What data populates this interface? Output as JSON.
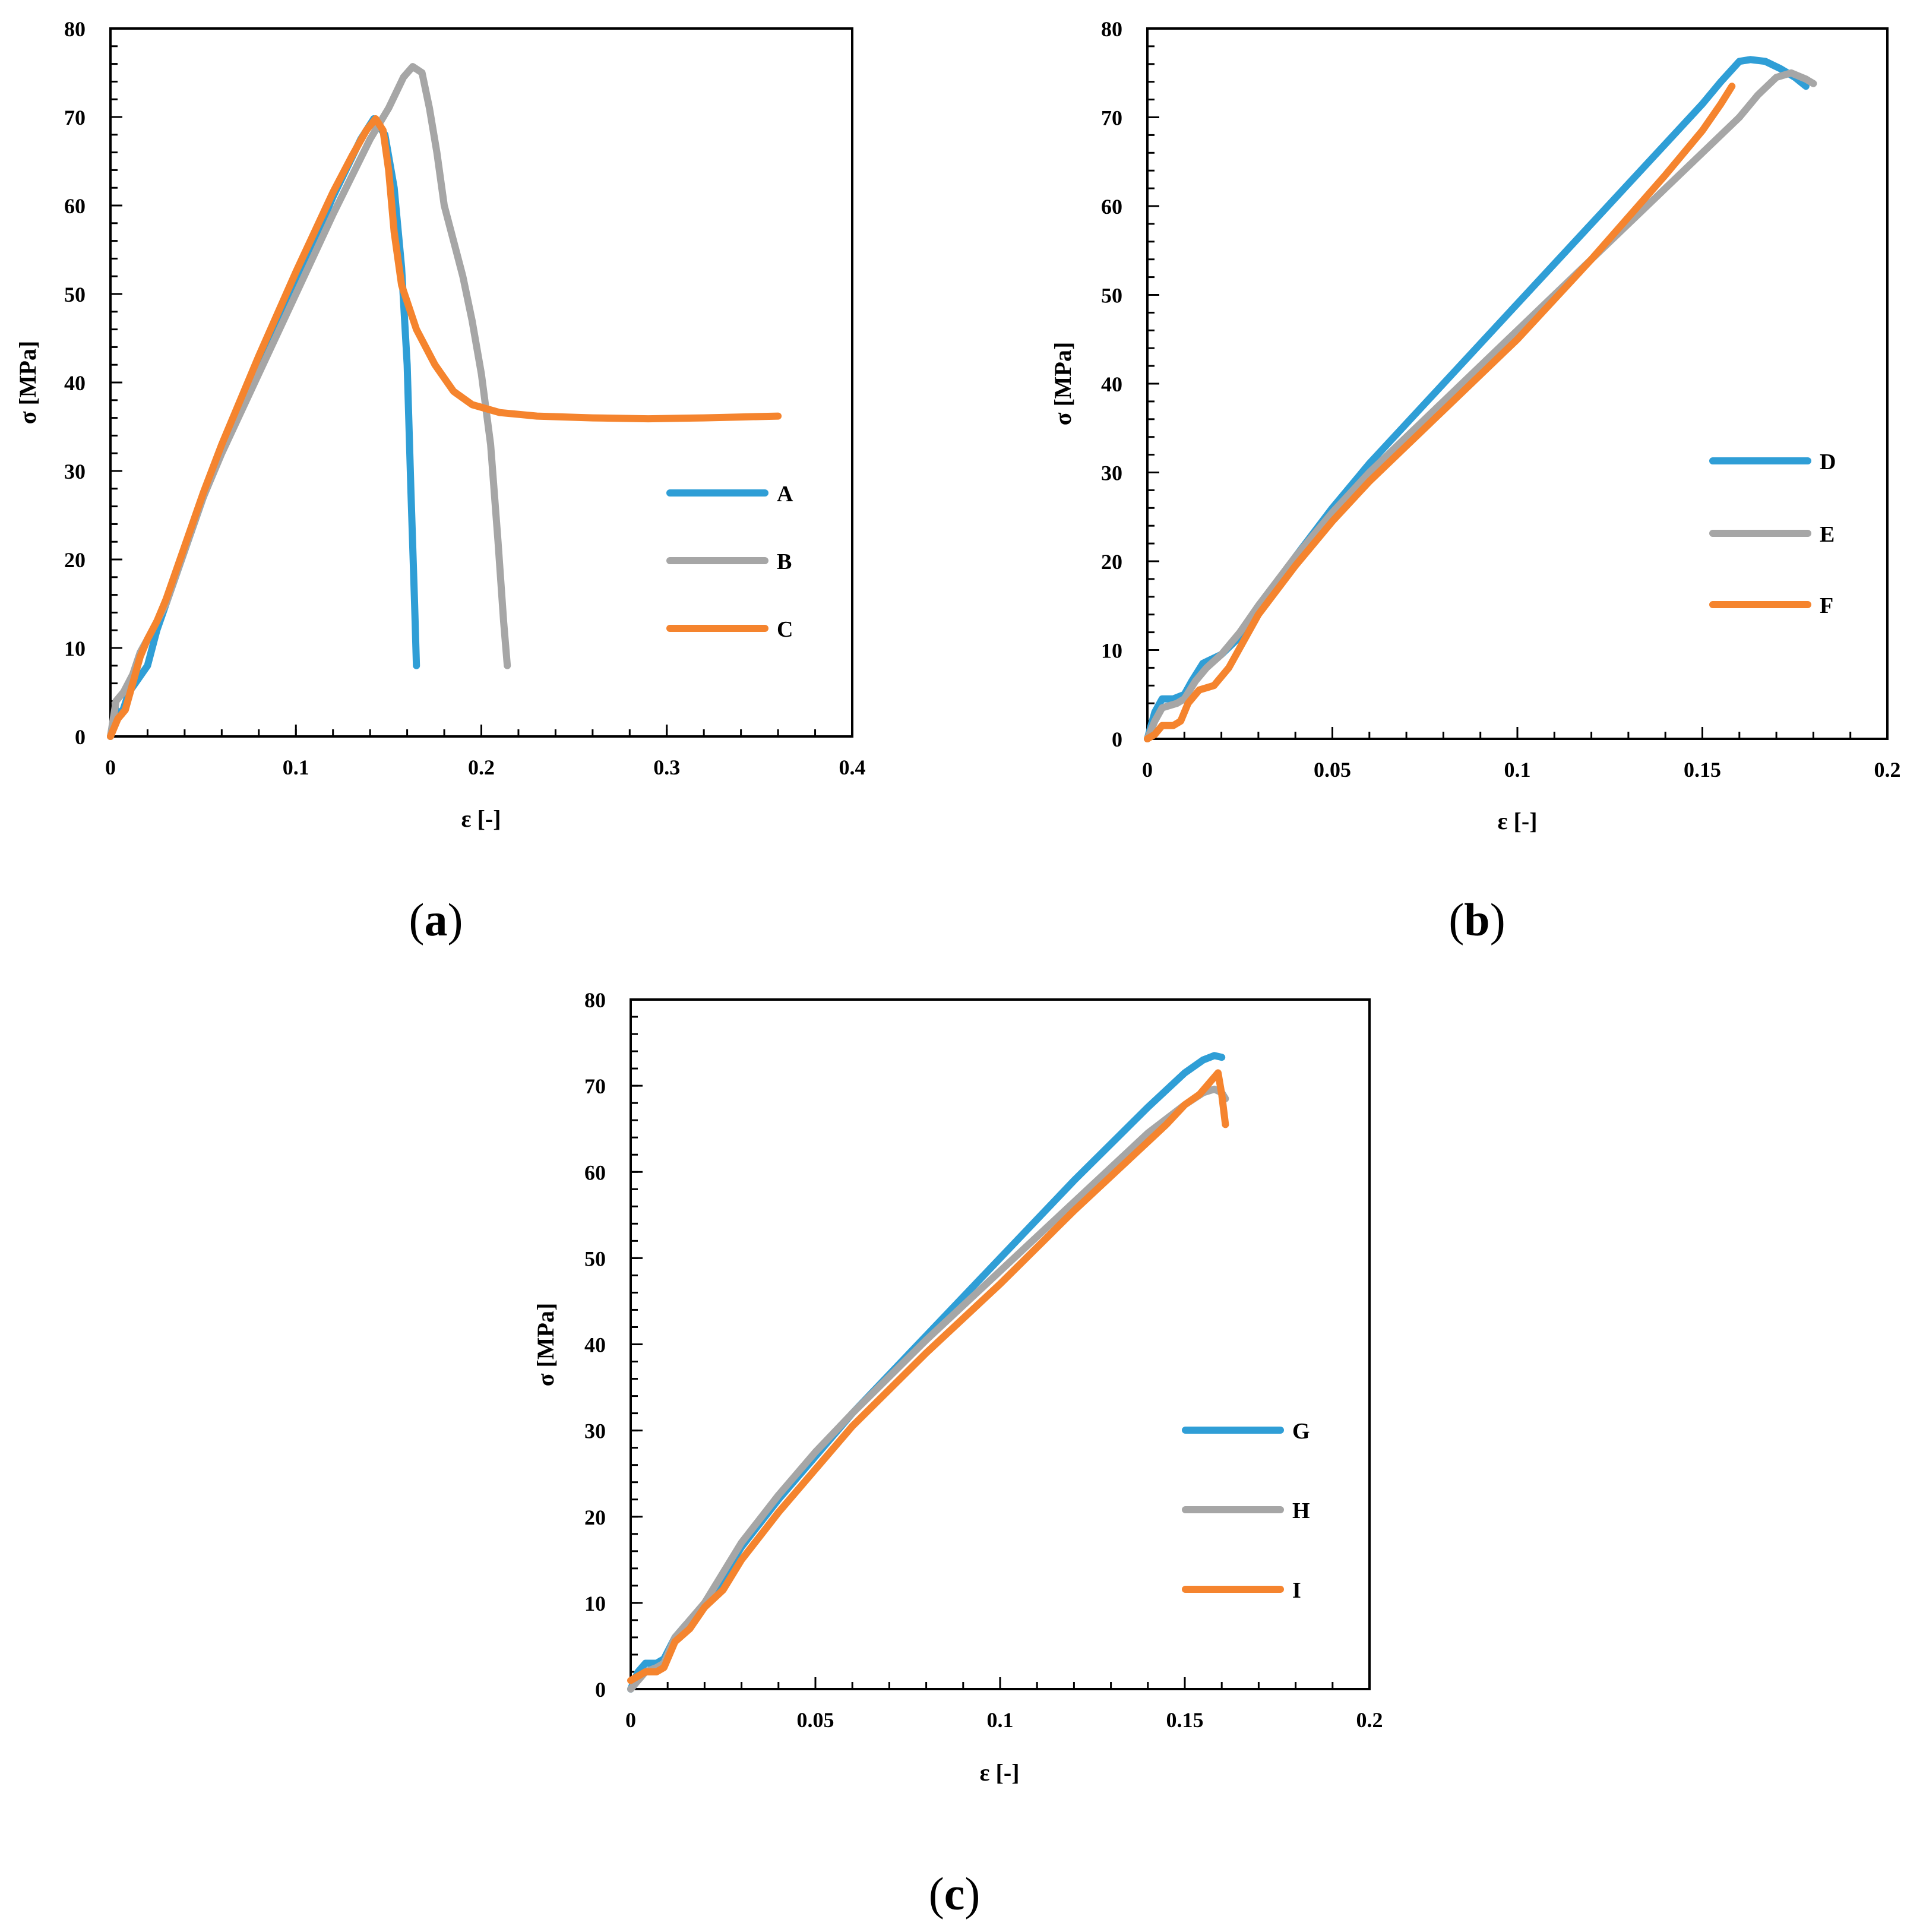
{
  "chart_data": [
    {
      "panel": "a",
      "panel_label": "(a)",
      "panel_letter": "a",
      "type": "line",
      "xlabel": "ε [-]",
      "ylabel": "σ [MPa]",
      "xlim": [
        0,
        0.4
      ],
      "ylim": [
        0,
        80
      ],
      "xticks": [
        0,
        0.1,
        0.2,
        0.3,
        0.4
      ],
      "xtick_labels": [
        "0",
        "0.1",
        "0.2",
        "0.3",
        "0.4"
      ],
      "yticks": [
        0,
        10,
        20,
        30,
        40,
        50,
        60,
        70,
        80
      ],
      "ytick_labels": [
        "0",
        "10",
        "20",
        "30",
        "40",
        "50",
        "60",
        "70",
        "80"
      ],
      "x_minor_step": 0.02,
      "y_minor_step": 2,
      "legend_position": "right-middle",
      "series": [
        {
          "name": "A",
          "color": "#2f9ed6",
          "points": [
            [
              0,
              0
            ],
            [
              0.003,
              3
            ],
            [
              0.006,
              2.5
            ],
            [
              0.01,
              5
            ],
            [
              0.015,
              6.5
            ],
            [
              0.02,
              8
            ],
            [
              0.025,
              12
            ],
            [
              0.03,
              15
            ],
            [
              0.04,
              21
            ],
            [
              0.05,
              27
            ],
            [
              0.06,
              32.5
            ],
            [
              0.08,
              42
            ],
            [
              0.1,
              51
            ],
            [
              0.12,
              61
            ],
            [
              0.135,
              67.5
            ],
            [
              0.142,
              69.8
            ],
            [
              0.148,
              68
            ],
            [
              0.153,
              62
            ],
            [
              0.157,
              53
            ],
            [
              0.16,
              42
            ],
            [
              0.162,
              28
            ],
            [
              0.164,
              15
            ],
            [
              0.165,
              8
            ]
          ]
        },
        {
          "name": "B",
          "color": "#a6a6a6",
          "points": [
            [
              0,
              0
            ],
            [
              0.003,
              4
            ],
            [
              0.007,
              5
            ],
            [
              0.012,
              7
            ],
            [
              0.016,
              9.5
            ],
            [
              0.02,
              11
            ],
            [
              0.025,
              13
            ],
            [
              0.03,
              15
            ],
            [
              0.04,
              21
            ],
            [
              0.05,
              27
            ],
            [
              0.06,
              32
            ],
            [
              0.08,
              41
            ],
            [
              0.1,
              50
            ],
            [
              0.12,
              59
            ],
            [
              0.14,
              67.5
            ],
            [
              0.15,
              71
            ],
            [
              0.158,
              74.5
            ],
            [
              0.163,
              75.7
            ],
            [
              0.168,
              75
            ],
            [
              0.172,
              71
            ],
            [
              0.176,
              66
            ],
            [
              0.18,
              60
            ],
            [
              0.185,
              56
            ],
            [
              0.19,
              52
            ],
            [
              0.195,
              47
            ],
            [
              0.2,
              41
            ],
            [
              0.205,
              33
            ],
            [
              0.209,
              22
            ],
            [
              0.212,
              13
            ],
            [
              0.214,
              8
            ]
          ]
        },
        {
          "name": "C",
          "color": "#f5842e",
          "points": [
            [
              0,
              0
            ],
            [
              0.004,
              2
            ],
            [
              0.008,
              3
            ],
            [
              0.012,
              6
            ],
            [
              0.016,
              9
            ],
            [
              0.02,
              11
            ],
            [
              0.025,
              13
            ],
            [
              0.03,
              15.5
            ],
            [
              0.04,
              21.5
            ],
            [
              0.05,
              27.5
            ],
            [
              0.06,
              33
            ],
            [
              0.08,
              43
            ],
            [
              0.1,
              52.5
            ],
            [
              0.12,
              61.5
            ],
            [
              0.13,
              65.5
            ],
            [
              0.138,
              68.5
            ],
            [
              0.143,
              69.8
            ],
            [
              0.147,
              68.5
            ],
            [
              0.15,
              64
            ],
            [
              0.153,
              57
            ],
            [
              0.157,
              51
            ],
            [
              0.165,
              46
            ],
            [
              0.175,
              42
            ],
            [
              0.185,
              39
            ],
            [
              0.195,
              37.5
            ],
            [
              0.21,
              36.6
            ],
            [
              0.23,
              36.2
            ],
            [
              0.26,
              36
            ],
            [
              0.29,
              35.9
            ],
            [
              0.32,
              36
            ],
            [
              0.34,
              36.1
            ],
            [
              0.36,
              36.2
            ]
          ]
        }
      ]
    },
    {
      "panel": "b",
      "panel_label": "(b)",
      "panel_letter": "b",
      "type": "line",
      "xlabel": "ε [-]",
      "ylabel": "σ [MPa]",
      "xlim": [
        0,
        0.2
      ],
      "ylim": [
        0,
        80
      ],
      "xticks": [
        0,
        0.05,
        0.1,
        0.15,
        0.2
      ],
      "xtick_labels": [
        "0",
        "0.05",
        "0.1",
        "0.15",
        "0.2"
      ],
      "yticks": [
        0,
        10,
        20,
        30,
        40,
        50,
        60,
        70,
        80
      ],
      "ytick_labels": [
        "0",
        "10",
        "20",
        "30",
        "40",
        "50",
        "60",
        "70",
        "80"
      ],
      "x_minor_step": 0.01,
      "y_minor_step": 2,
      "legend_position": "right-middle",
      "series": [
        {
          "name": "D",
          "color": "#2f9ed6",
          "points": [
            [
              0,
              0
            ],
            [
              0.002,
              3
            ],
            [
              0.004,
              4.5
            ],
            [
              0.007,
              4.5
            ],
            [
              0.01,
              5
            ],
            [
              0.012,
              6.5
            ],
            [
              0.015,
              8.5
            ],
            [
              0.02,
              9.5
            ],
            [
              0.025,
              11.5
            ],
            [
              0.03,
              14.5
            ],
            [
              0.04,
              20.5
            ],
            [
              0.05,
              26
            ],
            [
              0.06,
              31
            ],
            [
              0.08,
              40
            ],
            [
              0.1,
              49
            ],
            [
              0.12,
              58
            ],
            [
              0.14,
              67
            ],
            [
              0.15,
              71.5
            ],
            [
              0.155,
              74
            ],
            [
              0.16,
              76.3
            ],
            [
              0.163,
              76.5
            ],
            [
              0.167,
              76.3
            ],
            [
              0.171,
              75.5
            ],
            [
              0.175,
              74.5
            ],
            [
              0.178,
              73.5
            ]
          ]
        },
        {
          "name": "E",
          "color": "#a6a6a6",
          "points": [
            [
              0,
              0
            ],
            [
              0.002,
              2
            ],
            [
              0.004,
              3.5
            ],
            [
              0.008,
              4
            ],
            [
              0.01,
              4.5
            ],
            [
              0.013,
              6.5
            ],
            [
              0.016,
              8
            ],
            [
              0.02,
              9.5
            ],
            [
              0.025,
              12
            ],
            [
              0.03,
              15
            ],
            [
              0.04,
              20.5
            ],
            [
              0.05,
              25.5
            ],
            [
              0.06,
              30
            ],
            [
              0.08,
              38
            ],
            [
              0.1,
              46
            ],
            [
              0.12,
              54
            ],
            [
              0.14,
              62
            ],
            [
              0.15,
              66
            ],
            [
              0.16,
              70
            ],
            [
              0.165,
              72.5
            ],
            [
              0.17,
              74.5
            ],
            [
              0.174,
              75
            ],
            [
              0.178,
              74.3
            ],
            [
              0.18,
              73.8
            ]
          ]
        },
        {
          "name": "F",
          "color": "#f5842e",
          "points": [
            [
              0,
              0
            ],
            [
              0.002,
              0.5
            ],
            [
              0.004,
              1.5
            ],
            [
              0.007,
              1.5
            ],
            [
              0.009,
              2
            ],
            [
              0.011,
              4
            ],
            [
              0.014,
              5.5
            ],
            [
              0.018,
              6
            ],
            [
              0.022,
              8
            ],
            [
              0.026,
              11
            ],
            [
              0.03,
              14
            ],
            [
              0.04,
              19.5
            ],
            [
              0.05,
              24.5
            ],
            [
              0.06,
              29
            ],
            [
              0.08,
              37
            ],
            [
              0.1,
              45
            ],
            [
              0.12,
              54
            ],
            [
              0.14,
              63.5
            ],
            [
              0.15,
              68.5
            ],
            [
              0.155,
              71.5
            ],
            [
              0.158,
              73.5
            ]
          ]
        }
      ]
    },
    {
      "panel": "c",
      "panel_label": "(c)",
      "panel_letter": "c",
      "type": "line",
      "xlabel": "ε [-]",
      "ylabel": "σ [MPa]",
      "xlim": [
        0,
        0.2
      ],
      "ylim": [
        0,
        80
      ],
      "xticks": [
        0,
        0.05,
        0.1,
        0.15,
        0.2
      ],
      "xtick_labels": [
        "0",
        "0.05",
        "0.1",
        "0.15",
        "0.2"
      ],
      "yticks": [
        0,
        10,
        20,
        30,
        40,
        50,
        60,
        70,
        80
      ],
      "ytick_labels": [
        "0",
        "10",
        "20",
        "30",
        "40",
        "50",
        "60",
        "70",
        "80"
      ],
      "x_minor_step": 0.01,
      "y_minor_step": 2,
      "legend_position": "right-middle",
      "series": [
        {
          "name": "G",
          "color": "#2f9ed6",
          "points": [
            [
              0,
              0
            ],
            [
              0.002,
              2
            ],
            [
              0.004,
              3
            ],
            [
              0.007,
              3
            ],
            [
              0.009,
              3.5
            ],
            [
              0.012,
              6
            ],
            [
              0.015,
              7.5
            ],
            [
              0.02,
              9.5
            ],
            [
              0.025,
              13
            ],
            [
              0.03,
              16.5
            ],
            [
              0.04,
              22
            ],
            [
              0.05,
              27
            ],
            [
              0.06,
              32
            ],
            [
              0.08,
              41
            ],
            [
              0.1,
              50
            ],
            [
              0.12,
              59
            ],
            [
              0.14,
              67.5
            ],
            [
              0.15,
              71.5
            ],
            [
              0.155,
              73
            ],
            [
              0.158,
              73.5
            ],
            [
              0.16,
              73.3
            ]
          ]
        },
        {
          "name": "H",
          "color": "#a6a6a6",
          "points": [
            [
              0,
              0
            ],
            [
              0.002,
              1
            ],
            [
              0.004,
              2
            ],
            [
              0.007,
              2.5
            ],
            [
              0.009,
              3
            ],
            [
              0.012,
              6
            ],
            [
              0.015,
              7.5
            ],
            [
              0.02,
              10
            ],
            [
              0.025,
              13.5
            ],
            [
              0.03,
              17
            ],
            [
              0.04,
              22.5
            ],
            [
              0.05,
              27.5
            ],
            [
              0.06,
              32
            ],
            [
              0.08,
              40.5
            ],
            [
              0.1,
              48.5
            ],
            [
              0.12,
              56.5
            ],
            [
              0.14,
              64.5
            ],
            [
              0.15,
              67.8
            ],
            [
              0.155,
              69.2
            ],
            [
              0.158,
              69.6
            ],
            [
              0.16,
              69.2
            ],
            [
              0.161,
              68.5
            ]
          ]
        },
        {
          "name": "I",
          "color": "#f5842e",
          "points": [
            [
              0,
              1
            ],
            [
              0.002,
              1.5
            ],
            [
              0.004,
              2
            ],
            [
              0.007,
              2
            ],
            [
              0.009,
              2.5
            ],
            [
              0.012,
              5.5
            ],
            [
              0.016,
              7
            ],
            [
              0.02,
              9.5
            ],
            [
              0.025,
              11.5
            ],
            [
              0.03,
              15
            ],
            [
              0.04,
              20.5
            ],
            [
              0.05,
              25.5
            ],
            [
              0.06,
              30.5
            ],
            [
              0.08,
              39
            ],
            [
              0.1,
              47
            ],
            [
              0.12,
              55.5
            ],
            [
              0.14,
              63.5
            ],
            [
              0.145,
              65.5
            ],
            [
              0.15,
              67.8
            ],
            [
              0.154,
              69
            ],
            [
              0.157,
              70.5
            ],
            [
              0.159,
              71.5
            ],
            [
              0.16,
              69
            ],
            [
              0.161,
              65.5
            ]
          ]
        }
      ]
    }
  ]
}
